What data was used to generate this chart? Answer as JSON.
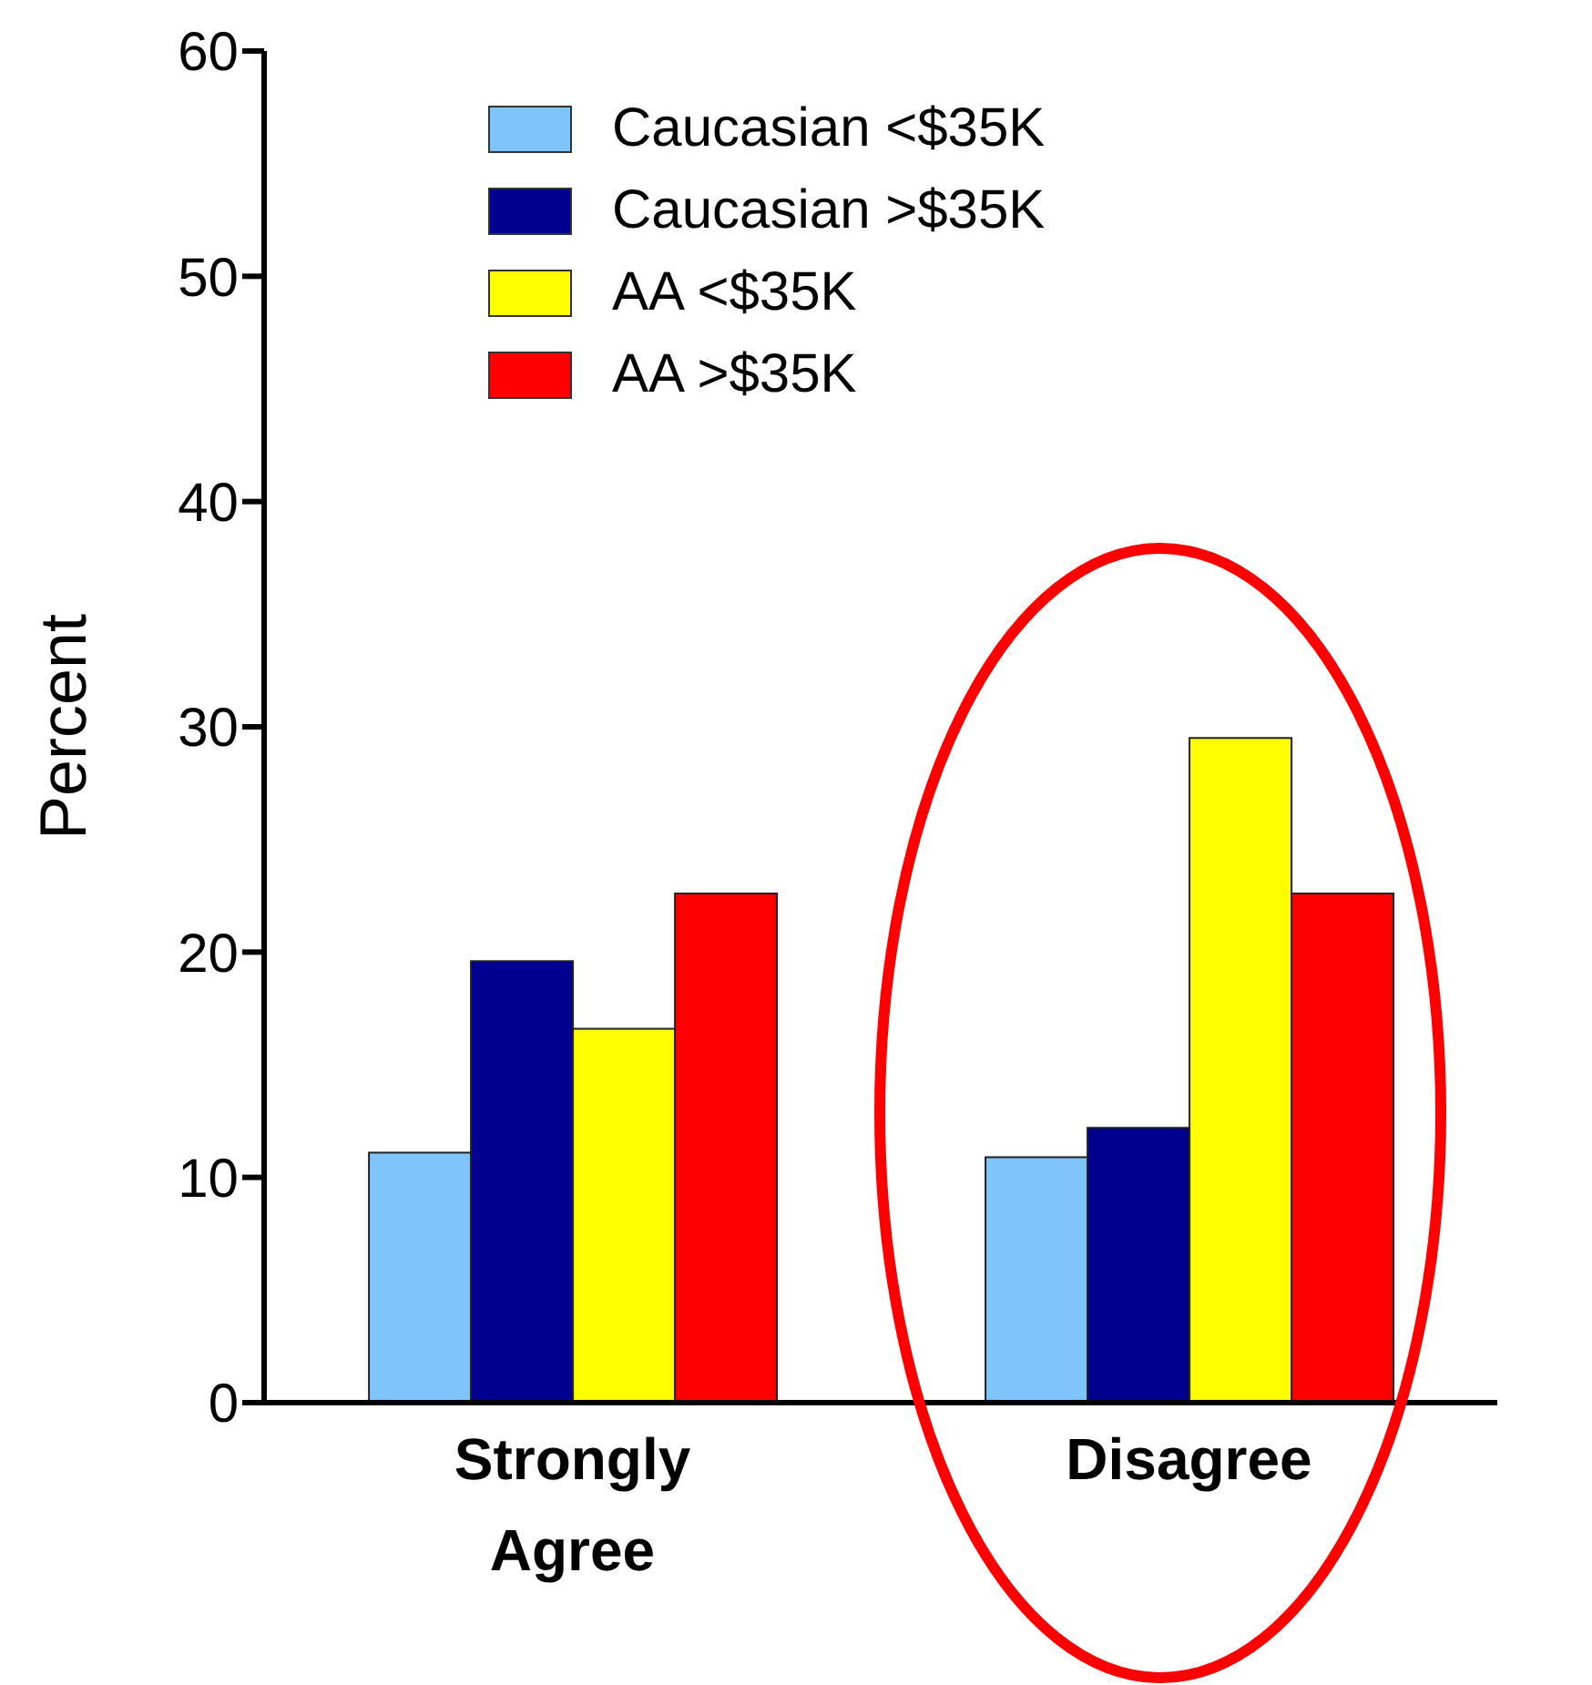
{
  "chart_data": {
    "type": "bar",
    "ylabel": "Percent",
    "categories": [
      "Strongly Agree",
      "Disagree"
    ],
    "series": [
      {
        "name": "Caucasian <$35K",
        "color": "#80c4fc",
        "values": [
          11.1,
          10.9
        ]
      },
      {
        "name": "Caucasian >$35K",
        "color": "#000090",
        "values": [
          19.6,
          12.2
        ]
      },
      {
        "name": "AA <$35K",
        "color": "#ffff00",
        "values": [
          16.6,
          29.5
        ]
      },
      {
        "name": "AA >$35K",
        "color": "#ff0000",
        "values": [
          22.6,
          22.6
        ]
      }
    ],
    "ylim": [
      0,
      60
    ],
    "yticks": [
      0,
      10,
      20,
      30,
      40,
      50,
      60
    ],
    "legend": "top",
    "grid": false
  }
}
